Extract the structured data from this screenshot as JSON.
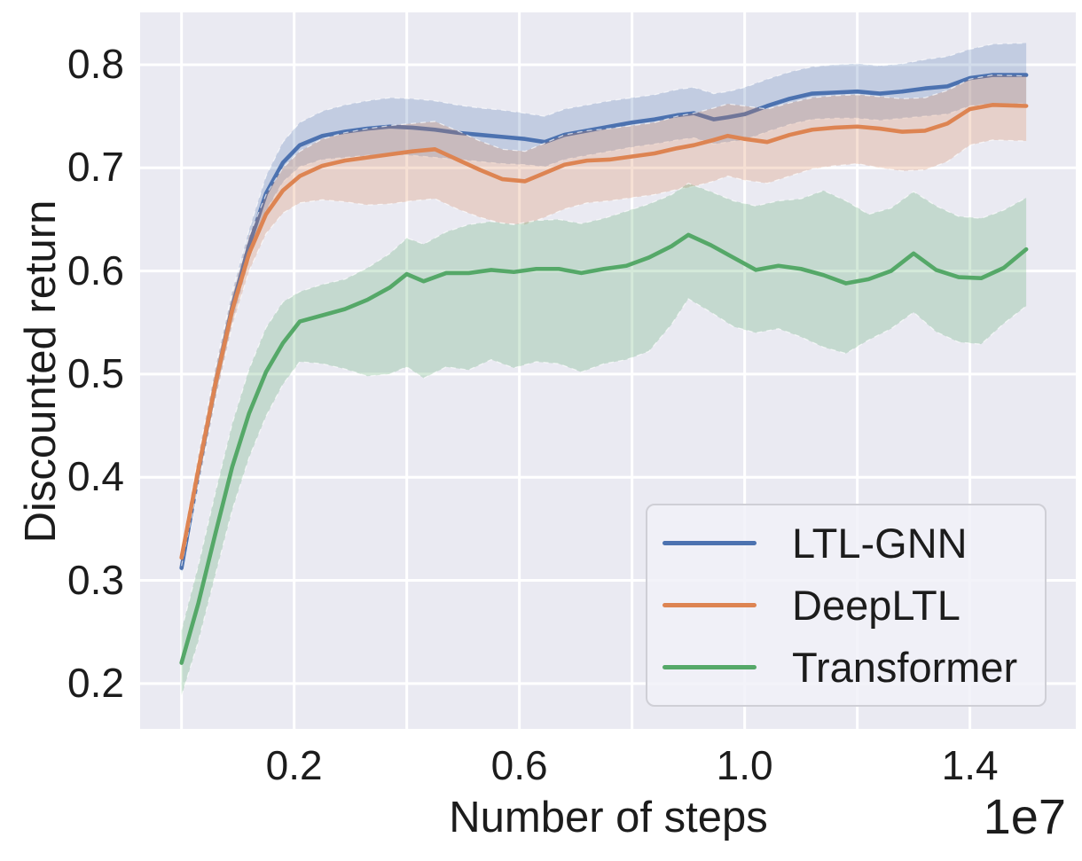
{
  "chart_data": {
    "type": "line",
    "title": "",
    "xlabel": "Number of steps",
    "ylabel": "Discounted return",
    "x_offset_text": "1e7",
    "x_unit_multiplier": 10000000,
    "grid": true,
    "background_color": "#eaeaf2",
    "gridline_color": "#ffffff",
    "text_color": "#1c1c1c",
    "xlim": [
      -0.0735,
      1.588
    ],
    "ylim": [
      0.156,
      0.8507
    ],
    "x_gridlines": [
      0.0,
      0.2,
      0.4,
      0.6,
      0.8,
      1.0,
      1.2,
      1.4
    ],
    "x_ticks": [
      {
        "value": 0.2,
        "label": "0.2"
      },
      {
        "value": 0.6,
        "label": "0.6"
      },
      {
        "value": 1.0,
        "label": "1.0"
      },
      {
        "value": 1.4,
        "label": "1.4"
      }
    ],
    "y_ticks": [
      {
        "value": 0.2,
        "label": "0.2"
      },
      {
        "value": 0.3,
        "label": "0.3"
      },
      {
        "value": 0.4,
        "label": "0.4"
      },
      {
        "value": 0.5,
        "label": "0.5"
      },
      {
        "value": 0.6,
        "label": "0.6"
      },
      {
        "value": 0.7,
        "label": "0.7"
      },
      {
        "value": 0.8,
        "label": "0.8"
      }
    ],
    "legend": {
      "position": "lower right",
      "entries": [
        {
          "label": "LTL-GNN",
          "color": "#4c72b0"
        },
        {
          "label": "DeepLTL",
          "color": "#dd8452"
        },
        {
          "label": "Transformer",
          "color": "#55a868"
        }
      ]
    },
    "series": [
      {
        "name": "LTL-GNN",
        "color": "#4c72b0",
        "band_opacity": 0.25,
        "x": [
          0.0,
          0.03,
          0.06,
          0.09,
          0.12,
          0.15,
          0.18,
          0.21,
          0.25,
          0.29,
          0.33,
          0.37,
          0.41,
          0.45,
          0.49,
          0.53,
          0.57,
          0.61,
          0.645,
          0.68,
          0.72,
          0.76,
          0.8,
          0.84,
          0.88,
          0.91,
          0.945,
          0.97,
          1.0,
          1.04,
          1.08,
          1.12,
          1.16,
          1.2,
          1.24,
          1.28,
          1.32,
          1.36,
          1.4,
          1.44,
          1.5
        ],
        "mean": [
          0.312,
          0.405,
          0.49,
          0.565,
          0.625,
          0.675,
          0.705,
          0.722,
          0.731,
          0.735,
          0.738,
          0.74,
          0.739,
          0.737,
          0.734,
          0.732,
          0.73,
          0.728,
          0.725,
          0.732,
          0.736,
          0.74,
          0.744,
          0.747,
          0.751,
          0.753,
          0.747,
          0.749,
          0.752,
          0.76,
          0.767,
          0.772,
          0.773,
          0.774,
          0.772,
          0.774,
          0.777,
          0.779,
          0.787,
          0.79,
          0.79
        ],
        "hi": [
          0.32,
          0.42,
          0.505,
          0.58,
          0.64,
          0.692,
          0.725,
          0.744,
          0.755,
          0.761,
          0.765,
          0.768,
          0.767,
          0.765,
          0.761,
          0.758,
          0.756,
          0.753,
          0.75,
          0.757,
          0.761,
          0.765,
          0.768,
          0.771,
          0.776,
          0.778,
          0.772,
          0.774,
          0.778,
          0.786,
          0.793,
          0.798,
          0.8,
          0.801,
          0.799,
          0.801,
          0.805,
          0.808,
          0.815,
          0.82,
          0.821
        ],
        "lo": [
          0.304,
          0.39,
          0.475,
          0.55,
          0.61,
          0.658,
          0.686,
          0.701,
          0.708,
          0.71,
          0.712,
          0.713,
          0.712,
          0.71,
          0.708,
          0.706,
          0.704,
          0.703,
          0.701,
          0.708,
          0.712,
          0.716,
          0.72,
          0.723,
          0.727,
          0.729,
          0.723,
          0.725,
          0.727,
          0.735,
          0.742,
          0.747,
          0.748,
          0.748,
          0.746,
          0.748,
          0.75,
          0.752,
          0.76,
          0.762,
          0.762
        ]
      },
      {
        "name": "DeepLTL",
        "color": "#dd8452",
        "band_opacity": 0.25,
        "x": [
          0.0,
          0.03,
          0.06,
          0.09,
          0.12,
          0.15,
          0.18,
          0.21,
          0.25,
          0.29,
          0.33,
          0.37,
          0.41,
          0.45,
          0.49,
          0.53,
          0.57,
          0.61,
          0.645,
          0.68,
          0.72,
          0.76,
          0.8,
          0.84,
          0.88,
          0.91,
          0.945,
          0.97,
          1.0,
          1.04,
          1.08,
          1.12,
          1.16,
          1.2,
          1.24,
          1.28,
          1.32,
          1.36,
          1.4,
          1.44,
          1.5
        ],
        "mean": [
          0.322,
          0.408,
          0.49,
          0.562,
          0.617,
          0.655,
          0.678,
          0.692,
          0.702,
          0.707,
          0.71,
          0.713,
          0.716,
          0.718,
          0.708,
          0.698,
          0.689,
          0.687,
          0.695,
          0.703,
          0.707,
          0.708,
          0.711,
          0.714,
          0.719,
          0.722,
          0.727,
          0.731,
          0.728,
          0.725,
          0.732,
          0.737,
          0.739,
          0.74,
          0.738,
          0.735,
          0.736,
          0.743,
          0.757,
          0.761,
          0.76
        ],
        "hi": [
          0.33,
          0.422,
          0.505,
          0.577,
          0.634,
          0.674,
          0.7,
          0.716,
          0.728,
          0.734,
          0.738,
          0.741,
          0.743,
          0.745,
          0.736,
          0.726,
          0.718,
          0.716,
          0.724,
          0.732,
          0.736,
          0.738,
          0.741,
          0.744,
          0.75,
          0.753,
          0.758,
          0.762,
          0.76,
          0.757,
          0.763,
          0.768,
          0.77,
          0.771,
          0.769,
          0.767,
          0.768,
          0.775,
          0.786,
          0.79,
          0.789
        ],
        "lo": [
          0.314,
          0.394,
          0.475,
          0.547,
          0.6,
          0.636,
          0.656,
          0.666,
          0.669,
          0.667,
          0.664,
          0.665,
          0.668,
          0.67,
          0.66,
          0.652,
          0.646,
          0.645,
          0.652,
          0.66,
          0.666,
          0.668,
          0.671,
          0.674,
          0.679,
          0.682,
          0.687,
          0.692,
          0.688,
          0.685,
          0.692,
          0.699,
          0.702,
          0.704,
          0.7,
          0.697,
          0.698,
          0.706,
          0.722,
          0.727,
          0.726
        ]
      },
      {
        "name": "Transformer",
        "color": "#55a868",
        "band_opacity": 0.25,
        "x": [
          0.0,
          0.03,
          0.06,
          0.09,
          0.12,
          0.15,
          0.18,
          0.21,
          0.25,
          0.29,
          0.33,
          0.37,
          0.4,
          0.43,
          0.47,
          0.51,
          0.55,
          0.59,
          0.63,
          0.67,
          0.71,
          0.75,
          0.79,
          0.83,
          0.87,
          0.9,
          0.94,
          0.98,
          1.02,
          1.06,
          1.1,
          1.14,
          1.18,
          1.22,
          1.26,
          1.3,
          1.34,
          1.38,
          1.42,
          1.46,
          1.5
        ],
        "mean": [
          0.22,
          0.278,
          0.345,
          0.41,
          0.462,
          0.502,
          0.53,
          0.551,
          0.557,
          0.563,
          0.572,
          0.584,
          0.597,
          0.59,
          0.598,
          0.598,
          0.601,
          0.599,
          0.602,
          0.602,
          0.598,
          0.602,
          0.605,
          0.613,
          0.624,
          0.635,
          0.625,
          0.613,
          0.601,
          0.605,
          0.602,
          0.596,
          0.588,
          0.592,
          0.6,
          0.617,
          0.601,
          0.594,
          0.593,
          0.603,
          0.621
        ],
        "hi": [
          0.252,
          0.315,
          0.385,
          0.452,
          0.505,
          0.545,
          0.57,
          0.58,
          0.587,
          0.592,
          0.603,
          0.617,
          0.632,
          0.626,
          0.638,
          0.645,
          0.648,
          0.645,
          0.649,
          0.65,
          0.646,
          0.651,
          0.658,
          0.665,
          0.674,
          0.685,
          0.677,
          0.668,
          0.663,
          0.668,
          0.67,
          0.678,
          0.668,
          0.655,
          0.661,
          0.677,
          0.663,
          0.653,
          0.651,
          0.659,
          0.671
        ],
        "lo": [
          0.188,
          0.241,
          0.305,
          0.368,
          0.419,
          0.459,
          0.49,
          0.512,
          0.51,
          0.505,
          0.498,
          0.5,
          0.507,
          0.496,
          0.507,
          0.504,
          0.514,
          0.506,
          0.512,
          0.51,
          0.502,
          0.51,
          0.514,
          0.522,
          0.548,
          0.573,
          0.56,
          0.546,
          0.54,
          0.544,
          0.536,
          0.526,
          0.52,
          0.533,
          0.544,
          0.56,
          0.541,
          0.531,
          0.529,
          0.549,
          0.566
        ]
      }
    ]
  }
}
